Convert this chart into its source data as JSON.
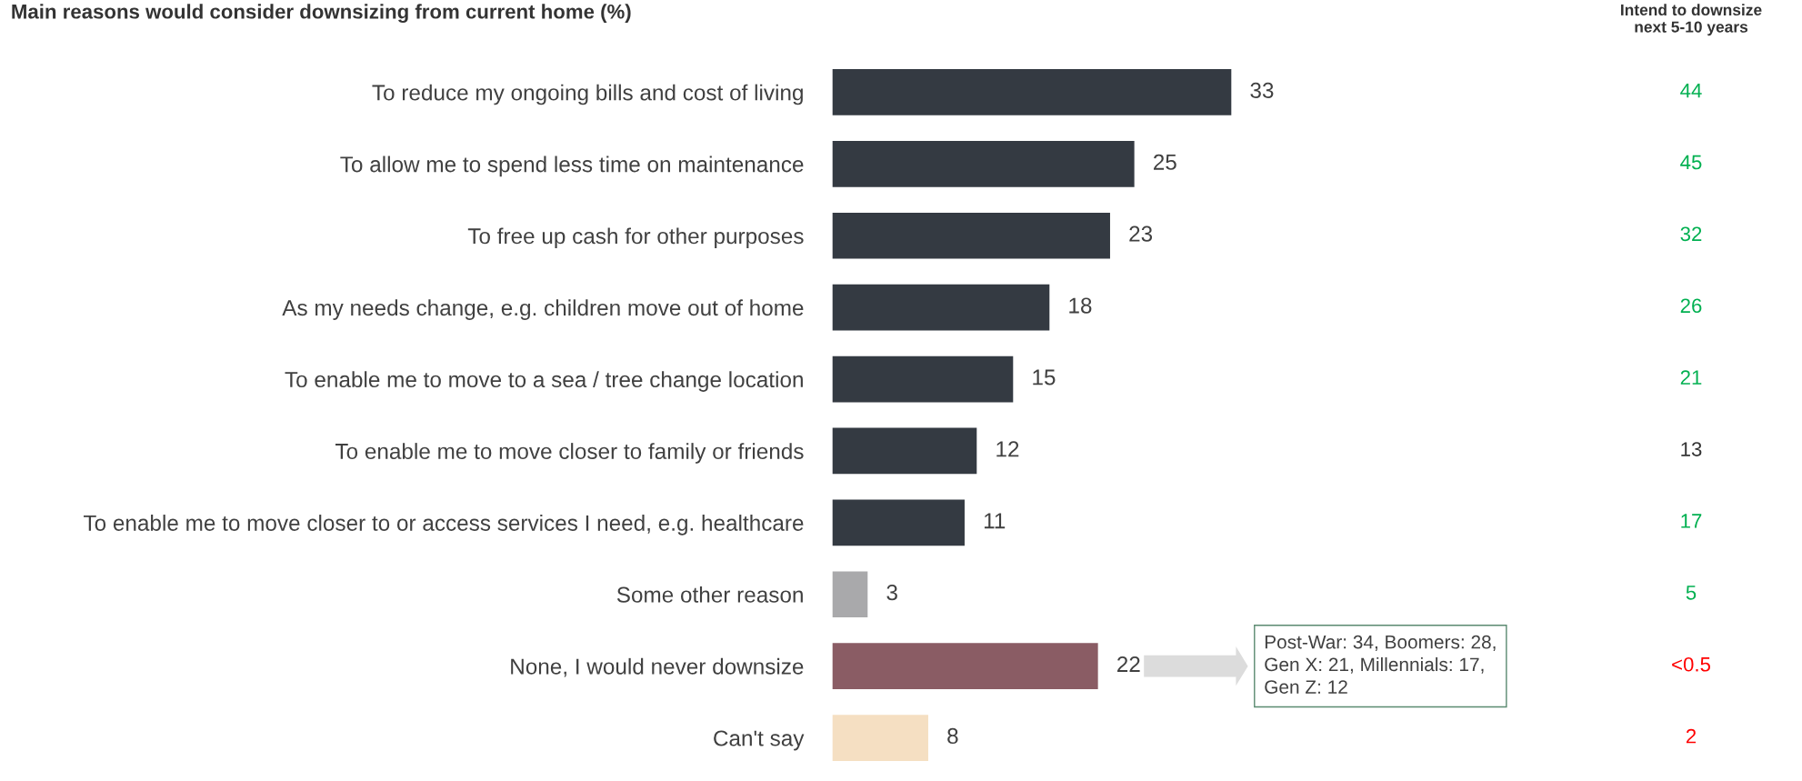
{
  "chart_data": [
    {
      "type": "bar",
      "orientation": "horizontal",
      "title": "Main reasons would consider downsizing from current home (%)",
      "categories": [
        "To reduce my ongoing bills and cost of living",
        "To allow me to spend less time on maintenance",
        "To free up cash for other purposes",
        "As my needs change, e.g. children move out of home",
        "To enable me to move to a sea / tree change location",
        "To enable me to move closer to family or friends",
        "To enable me to move closer to or access services I need, e.g. healthcare",
        "Some other reason",
        "None, I would never downsize",
        "Can't say"
      ],
      "values": [
        33,
        25,
        23,
        18,
        15,
        12,
        11,
        3,
        22,
        8
      ],
      "colors": [
        "#343a42",
        "#343a42",
        "#343a42",
        "#343a42",
        "#343a42",
        "#343a42",
        "#343a42",
        "#a9a9ab",
        "#8a5c64",
        "#f5dfc2"
      ],
      "data_labels": true,
      "annotations": [
        "Post-War: 34, Boomers: 28,\nGen X: 21, Millennials: 17,\nGen Z: 12"
      ]
    },
    {
      "type": "other",
      "title": "Intend to downsize\nnext 5-10 years",
      "categories": [
        null,
        null,
        null,
        null,
        null,
        null,
        null,
        null,
        null,
        null
      ],
      "values": [
        44,
        45,
        32,
        26,
        21,
        13,
        17,
        5,
        null,
        2
      ],
      "value_labels": [
        "44",
        "45",
        "32",
        "26",
        "21",
        "13",
        "17",
        "5",
        "<0.5",
        "2"
      ],
      "colors": [
        "#00b050",
        "#00b050",
        "#00b050",
        "#00b050",
        "#00b050",
        "#333333",
        "#00b050",
        "#00b050",
        "#ff0000",
        "#ff0000"
      ]
    }
  ]
}
